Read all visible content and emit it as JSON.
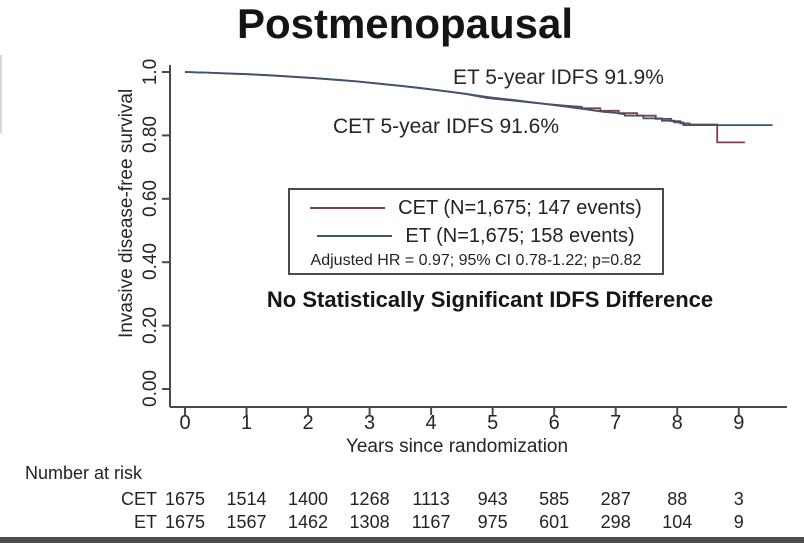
{
  "title": "Postmenopausal",
  "chart_data": {
    "type": "line",
    "subtype": "kaplan-meier-step",
    "title": "Postmenopausal",
    "xlabel": "Years since randomization",
    "ylabel": "Invasive disease-free survival",
    "xlim": [
      0,
      9.6
    ],
    "ylim": [
      0,
      1.0
    ],
    "grid": false,
    "x_ticks": [
      "0",
      "1",
      "2",
      "3",
      "4",
      "5",
      "6",
      "7",
      "8",
      "9"
    ],
    "x_tick_values": [
      0,
      1,
      2,
      3,
      4,
      5,
      6,
      7,
      8,
      9
    ],
    "y_ticks": [
      {
        "v": 1.0,
        "label": "1.0"
      },
      {
        "v": 0.8,
        "label": "0.80"
      },
      {
        "v": 0.6,
        "label": "0.60"
      },
      {
        "v": 0.4,
        "label": "0.40"
      },
      {
        "v": 0.2,
        "label": "0.20"
      },
      {
        "v": 0.0,
        "label": "0.00"
      }
    ],
    "axis_color": "#4a4a4a",
    "series": [
      {
        "name": "CET",
        "legend_label": "CET (N=1,675; 147 events)",
        "color": "#7f4048",
        "five_year_idfs": "91.6%",
        "points": [
          [
            0,
            1.0
          ],
          [
            0.35,
            0.998
          ],
          [
            0.7,
            0.995
          ],
          [
            1.05,
            0.9925
          ],
          [
            1.4,
            0.989
          ],
          [
            1.75,
            0.985
          ],
          [
            2.1,
            0.9805
          ],
          [
            2.45,
            0.9755
          ],
          [
            2.8,
            0.97
          ],
          [
            3.15,
            0.963
          ],
          [
            3.5,
            0.956
          ],
          [
            3.85,
            0.9485
          ],
          [
            4.2,
            0.94
          ],
          [
            4.55,
            0.931
          ],
          [
            4.9,
            0.9185
          ],
          [
            5,
            0.916
          ],
          [
            5.3,
            0.9105
          ],
          [
            5.6,
            0.9045
          ],
          [
            5.9,
            0.8985
          ],
          [
            6.2,
            0.8935
          ],
          [
            6.45,
            0.89
          ],
          [
            6.45,
            0.8855
          ],
          [
            6.75,
            0.8855
          ],
          [
            6.75,
            0.8775
          ],
          [
            7.05,
            0.8775
          ],
          [
            7.05,
            0.87
          ],
          [
            7.35,
            0.87
          ],
          [
            7.35,
            0.862
          ],
          [
            7.65,
            0.862
          ],
          [
            7.65,
            0.852
          ],
          [
            7.9,
            0.852
          ],
          [
            7.9,
            0.845
          ],
          [
            8.05,
            0.845
          ],
          [
            8.05,
            0.838
          ],
          [
            8.2,
            0.838
          ],
          [
            8.2,
            0.8345
          ],
          [
            8.65,
            0.8345
          ],
          [
            8.65,
            0.778
          ],
          [
            9.1,
            0.778
          ]
        ]
      },
      {
        "name": "ET",
        "legend_label": "ET (N=1,675; 158 events)",
        "color": "#3a556e",
        "five_year_idfs": "91.9%",
        "points": [
          [
            0,
            1.0
          ],
          [
            0.35,
            0.998
          ],
          [
            0.7,
            0.9955
          ],
          [
            1.05,
            0.993
          ],
          [
            1.4,
            0.9895
          ],
          [
            1.75,
            0.9855
          ],
          [
            2.1,
            0.981
          ],
          [
            2.45,
            0.976
          ],
          [
            2.8,
            0.9705
          ],
          [
            3.15,
            0.9635
          ],
          [
            3.5,
            0.9565
          ],
          [
            3.85,
            0.949
          ],
          [
            4.2,
            0.9405
          ],
          [
            4.55,
            0.9315
          ],
          [
            4.9,
            0.9215
          ],
          [
            5,
            0.919
          ],
          [
            5.3,
            0.9125
          ],
          [
            5.6,
            0.9055
          ],
          [
            5.9,
            0.898
          ],
          [
            6.2,
            0.8905
          ],
          [
            6.5,
            0.8825
          ],
          [
            6.8,
            0.8745
          ],
          [
            7,
            0.871
          ],
          [
            7.15,
            0.8665
          ],
          [
            7.15,
            0.8625
          ],
          [
            7.45,
            0.8625
          ],
          [
            7.45,
            0.8535
          ],
          [
            7.75,
            0.8535
          ],
          [
            7.75,
            0.8465
          ],
          [
            7.95,
            0.8465
          ],
          [
            7.95,
            0.841
          ],
          [
            8.1,
            0.841
          ],
          [
            8.1,
            0.8325
          ],
          [
            9.55,
            0.8325
          ]
        ]
      }
    ],
    "annotations": [
      {
        "text": "ET 5-year IDFS 91.9%"
      },
      {
        "text": "CET 5-year IDFS 91.6%"
      }
    ],
    "legend": {
      "position": "center",
      "stats_line": "Adjusted HR = 0.97; 95% CI 0.78-1.22; p=0.82"
    },
    "note": "No Statistically Significant IDFS Difference"
  },
  "number_at_risk": {
    "heading": "Number at risk",
    "rows": [
      {
        "label": "CET",
        "values": [
          "1675",
          "1514",
          "1400",
          "1268",
          "1113",
          "943",
          "585",
          "287",
          "88",
          "3"
        ]
      },
      {
        "label": "ET",
        "values": [
          "1675",
          "1567",
          "1462",
          "1308",
          "1167",
          "975",
          "601",
          "298",
          "104",
          "9"
        ]
      }
    ]
  }
}
